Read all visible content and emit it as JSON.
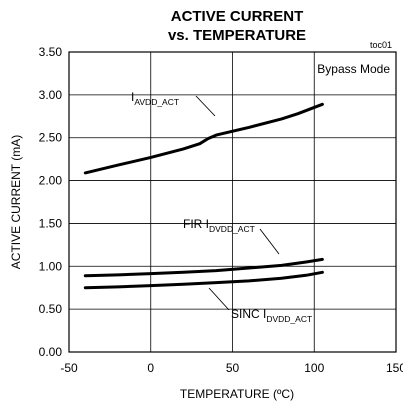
{
  "chart_data": {
    "type": "line",
    "title": "ACTIVE CURRENT",
    "subtitle": "vs. TEMPERATURE",
    "code": "toc01",
    "note": "Bypass Mode",
    "xlabel": "TEMPERATURE (ºC)",
    "ylabel": "ACTIVE CURRENT (mA)",
    "xlim": [
      -50,
      150
    ],
    "ylim": [
      0,
      3.5
    ],
    "xticks": [
      -50,
      0,
      50,
      100,
      150
    ],
    "yticks": [
      0,
      0.5,
      1,
      1.5,
      2,
      2.5,
      3,
      3.5
    ],
    "xtick_labels": [
      "-50",
      "0",
      "50",
      "100",
      "150"
    ],
    "ytick_labels": [
      "0.00",
      "0.50",
      "1.00",
      "1.50",
      "2.00",
      "2.50",
      "3.00",
      "3.50"
    ],
    "grid": true,
    "series": [
      {
        "name": "IAVDD_ACT",
        "label_main": "I",
        "label_sub": "AVDD_ACT",
        "x": [
          -40,
          -20,
          0,
          20,
          30,
          35,
          40,
          60,
          80,
          90,
          105
        ],
        "y": [
          2.09,
          2.18,
          2.27,
          2.37,
          2.43,
          2.49,
          2.53,
          2.62,
          2.72,
          2.78,
          2.89
        ]
      },
      {
        "name": "FIR IDVDD_ACT",
        "label_main": "FIR I",
        "label_sub": "DVDD_ACT",
        "x": [
          -40,
          -20,
          0,
          20,
          40,
          60,
          80,
          95,
          105
        ],
        "y": [
          0.89,
          0.9,
          0.915,
          0.93,
          0.95,
          0.98,
          1.01,
          1.05,
          1.08
        ]
      },
      {
        "name": "SINC IDVDD_ACT",
        "label_main": "SINC I",
        "label_sub": "DVDD_ACT",
        "x": [
          -40,
          -20,
          0,
          20,
          40,
          60,
          80,
          95,
          105
        ],
        "y": [
          0.75,
          0.76,
          0.775,
          0.79,
          0.81,
          0.83,
          0.86,
          0.895,
          0.93
        ]
      }
    ]
  }
}
